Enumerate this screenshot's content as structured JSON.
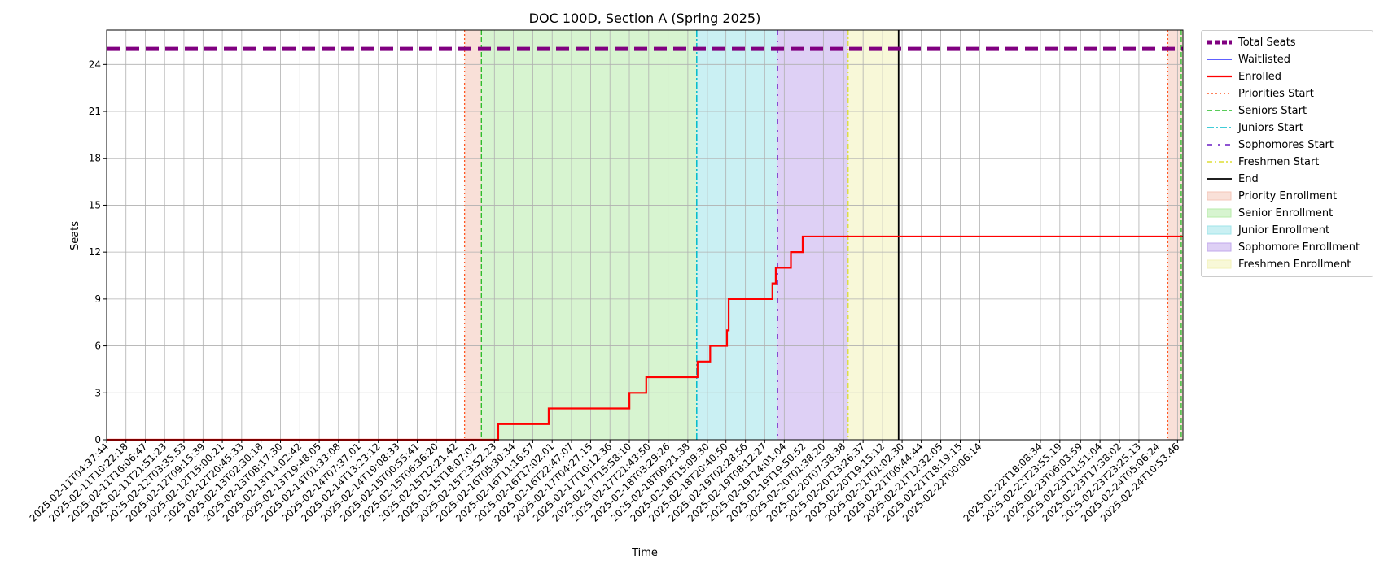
{
  "chart_data": {
    "type": "line",
    "title": "DOC 100D, Section A (Spring 2025)",
    "xlabel": "Time",
    "ylabel": "Seats",
    "x_start": "2025-02-11T04:37:44",
    "x_end": "2025-02-24T12:30:00",
    "ylim": [
      0,
      26.2
    ],
    "yticks": [
      0,
      3,
      6,
      9,
      12,
      15,
      18,
      21,
      24
    ],
    "grid": true,
    "legend_position": "outside-right",
    "xticks": [
      "2025-02-11T04:37:44",
      "2025-02-11T10:22:18",
      "2025-02-11T16:06:47",
      "2025-02-11T21:51:23",
      "2025-02-12T03:35:53",
      "2025-02-12T09:15:39",
      "2025-02-12T15:00:21",
      "2025-02-12T20:45:33",
      "2025-02-13T02:30:18",
      "2025-02-13T08:17:30",
      "2025-02-13T14:02:42",
      "2025-02-13T19:48:05",
      "2025-02-14T01:33:08",
      "2025-02-14T07:37:01",
      "2025-02-14T13:23:12",
      "2025-02-14T19:08:33",
      "2025-02-15T00:55:41",
      "2025-02-15T06:36:20",
      "2025-02-15T12:21:42",
      "2025-02-15T18:07:02",
      "2025-02-15T23:52:23",
      "2025-02-16T05:30:34",
      "2025-02-16T11:16:57",
      "2025-02-16T17:02:01",
      "2025-02-16T22:47:07",
      "2025-02-17T04:27:15",
      "2025-02-17T10:12:36",
      "2025-02-17T15:58:10",
      "2025-02-17T21:43:50",
      "2025-02-18T03:29:26",
      "2025-02-18T09:21:38",
      "2025-02-18T15:09:30",
      "2025-02-18T20:40:50",
      "2025-02-19T02:28:56",
      "2025-02-19T08:12:27",
      "2025-02-19T14:01:04",
      "2025-02-19T19:50:52",
      "2025-02-20T01:38:20",
      "2025-02-20T07:38:38",
      "2025-02-20T13:26:37",
      "2025-02-20T19:15:12",
      "2025-02-21T01:02:30",
      "2025-02-21T06:44:44",
      "2025-02-21T12:32:05",
      "2025-02-21T18:19:15",
      "2025-02-22T00:06:14",
      "2025-02-22T18:08:34",
      "2025-02-22T23:55:19",
      "2025-02-23T06:03:59",
      "2025-02-23T11:51:04",
      "2025-02-23T17:38:02",
      "2025-02-23T23:25:13",
      "2025-02-24T05:06:24",
      "2025-02-24T10:53:46"
    ],
    "periods": [
      {
        "name": "Priority Enrollment",
        "start": "2025-02-15T15:00:00",
        "end": "2025-02-15T20:00:00",
        "color": "#f4c6b8"
      },
      {
        "name": "Senior Enrollment",
        "start": "2025-02-15T20:00:00",
        "end": "2025-02-18T12:00:00",
        "color": "#b7ebaa"
      },
      {
        "name": "Junior Enrollment",
        "start": "2025-02-18T12:00:00",
        "end": "2025-02-19T12:00:00",
        "color": "#9fe4ea"
      },
      {
        "name": "Sophomore Enrollment",
        "start": "2025-02-19T12:00:00",
        "end": "2025-02-20T09:00:00",
        "color": "#c2a9ec"
      },
      {
        "name": "Freshmen Enrollment",
        "start": "2025-02-20T09:00:00",
        "end": "2025-02-21T00:00:00",
        "color": "#f2f2b8"
      },
      {
        "name": "Priority Enrollment (2)",
        "start": "2025-02-24T08:00:00",
        "end": "2025-02-24T12:30:00",
        "color": "#f4c6b8"
      }
    ],
    "markers": [
      {
        "name": "Priorities Start",
        "x": "2025-02-15T15:00:00",
        "color": "#ff5722",
        "dash": "2,3",
        "width": 1.3
      },
      {
        "name": "Seniors Start",
        "x": "2025-02-15T20:00:00",
        "color": "#22bb22",
        "dash": "6,3",
        "width": 1.3
      },
      {
        "name": "Juniors Start",
        "x": "2025-02-18T12:00:00",
        "color": "#00bbcc",
        "dash": "8,3,2,3",
        "width": 1.5
      },
      {
        "name": "Sophomores Start",
        "x": "2025-02-19T12:00:00",
        "color": "#6a1bc4",
        "dash": "6,7,2,7",
        "width": 1.5
      },
      {
        "name": "Freshmen Start",
        "x": "2025-02-20T09:00:00",
        "color": "#dddd33",
        "dash": "6,3,2,3",
        "width": 1.3
      },
      {
        "name": "End",
        "x": "2025-02-21T00:00:00",
        "color": "#000000",
        "dash": "",
        "width": 1.8
      },
      {
        "name": "Priorities Start (2)",
        "x": "2025-02-24T08:00:00",
        "color": "#ff5722",
        "dash": "2,3",
        "width": 1.3
      },
      {
        "name": "Seniors Start (2)",
        "x": "2025-02-24T12:00:00",
        "color": "#22bb22",
        "dash": "6,3",
        "width": 1.3
      }
    ],
    "series": [
      {
        "name": "Total Seats",
        "color": "#800080",
        "style": "dashed",
        "width": 5,
        "points": [
          [
            "2025-02-11T04:37:44",
            25
          ],
          [
            "2025-02-24T12:30:00",
            25
          ]
        ]
      },
      {
        "name": "Waitlisted",
        "color": "#0000ff",
        "style": "solid",
        "width": 1.2,
        "points": []
      },
      {
        "name": "Enrolled",
        "color": "#ff0000",
        "style": "solid",
        "width": 2.2,
        "step": true,
        "points": [
          [
            "2025-02-11T04:37:44",
            0
          ],
          [
            "2025-02-16T01:00:00",
            1
          ],
          [
            "2025-02-16T16:00:00",
            2
          ],
          [
            "2025-02-17T16:00:00",
            3
          ],
          [
            "2025-02-17T21:00:00",
            4
          ],
          [
            "2025-02-18T12:15:00",
            5
          ],
          [
            "2025-02-18T16:00:00",
            6
          ],
          [
            "2025-02-18T21:00:00",
            7
          ],
          [
            "2025-02-18T21:30:00",
            9
          ],
          [
            "2025-02-19T10:30:00",
            10
          ],
          [
            "2025-02-19T11:30:00",
            11
          ],
          [
            "2025-02-19T16:00:00",
            12
          ],
          [
            "2025-02-19T19:30:00",
            13
          ],
          [
            "2025-02-24T12:30:00",
            13
          ]
        ]
      }
    ]
  },
  "legend": {
    "items": [
      {
        "label": "Total Seats",
        "kind": "line",
        "color": "#800080",
        "dash": "6,3",
        "width": 5
      },
      {
        "label": "Waitlisted",
        "kind": "line",
        "color": "#0000ff",
        "dash": "",
        "width": 1.2
      },
      {
        "label": "Enrolled",
        "kind": "line",
        "color": "#ff0000",
        "dash": "",
        "width": 2.2
      },
      {
        "label": "Priorities Start",
        "kind": "line",
        "color": "#ff5722",
        "dash": "2,3",
        "width": 1.5
      },
      {
        "label": "Seniors Start",
        "kind": "line",
        "color": "#22bb22",
        "dash": "6,3",
        "width": 1.5
      },
      {
        "label": "Juniors Start",
        "kind": "line",
        "color": "#00bbcc",
        "dash": "8,3,2,3",
        "width": 1.5
      },
      {
        "label": "Sophomores Start",
        "kind": "line",
        "color": "#6a1bc4",
        "dash": "6,7,2,7",
        "width": 1.5
      },
      {
        "label": "Freshmen Start",
        "kind": "line",
        "color": "#dddd33",
        "dash": "6,3,2,3",
        "width": 1.5
      },
      {
        "label": "End",
        "kind": "line",
        "color": "#000000",
        "dash": "",
        "width": 1.8
      },
      {
        "label": "Priority Enrollment",
        "kind": "patch",
        "color": "#f4c6b8"
      },
      {
        "label": "Senior Enrollment",
        "kind": "patch",
        "color": "#b7ebaa"
      },
      {
        "label": "Junior Enrollment",
        "kind": "patch",
        "color": "#9fe4ea"
      },
      {
        "label": "Sophomore Enrollment",
        "kind": "patch",
        "color": "#c2a9ec"
      },
      {
        "label": "Freshmen Enrollment",
        "kind": "patch",
        "color": "#f2f2b8"
      }
    ]
  }
}
